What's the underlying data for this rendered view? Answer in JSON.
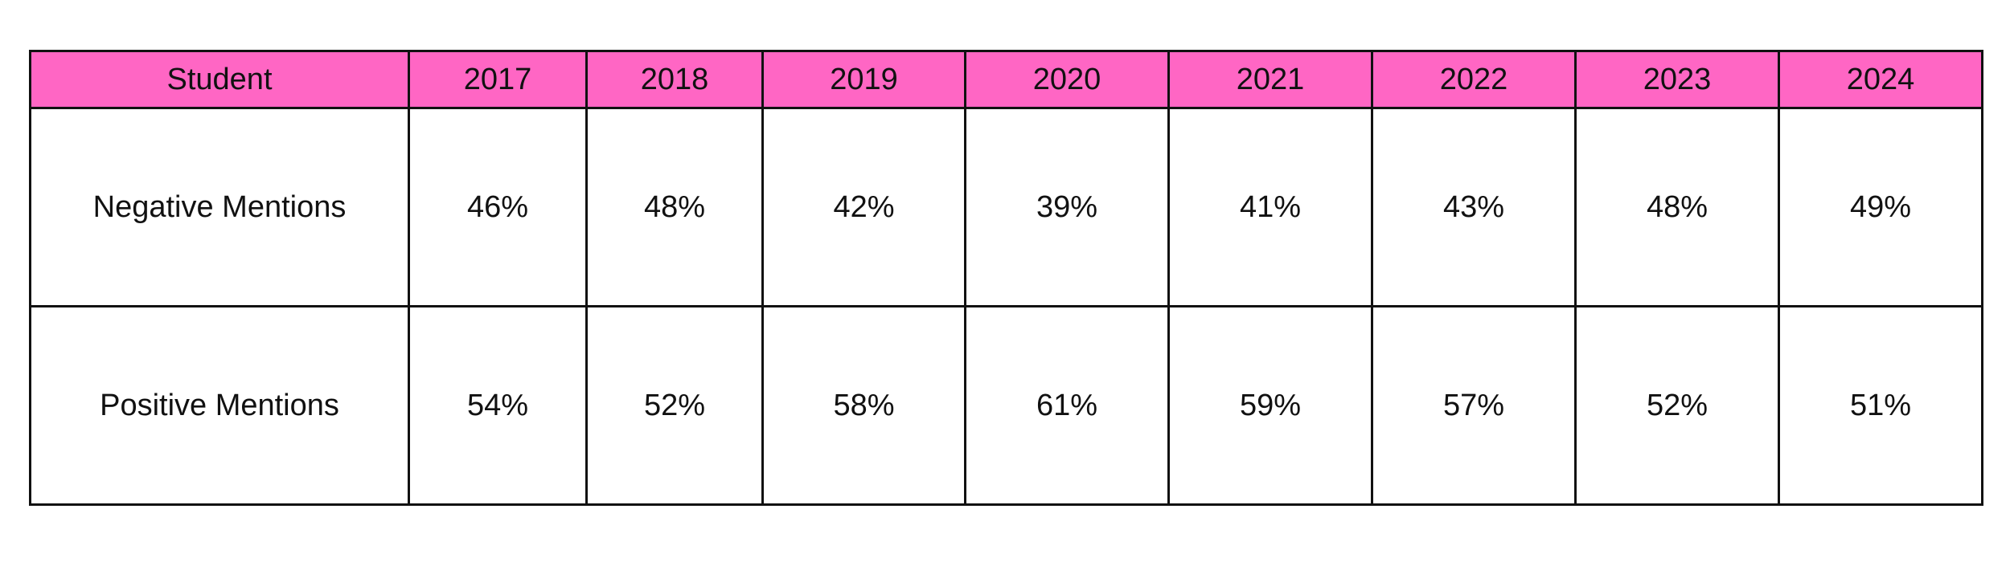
{
  "chart_data": {
    "type": "table",
    "header_color": "#ff66c4",
    "columns": [
      "Student",
      "2017",
      "2018",
      "2019",
      "2020",
      "2021",
      "2022",
      "2023",
      "2024"
    ],
    "rows": [
      {
        "label": "Negative Mentions",
        "cells": [
          "46%",
          "48%",
          "42%",
          "39%",
          "41%",
          "43%",
          "48%",
          "49%"
        ]
      },
      {
        "label": "Positive Mentions",
        "cells": [
          "54%",
          "52%",
          "58%",
          "61%",
          "59%",
          "57%",
          "52%",
          "51%"
        ]
      }
    ]
  }
}
